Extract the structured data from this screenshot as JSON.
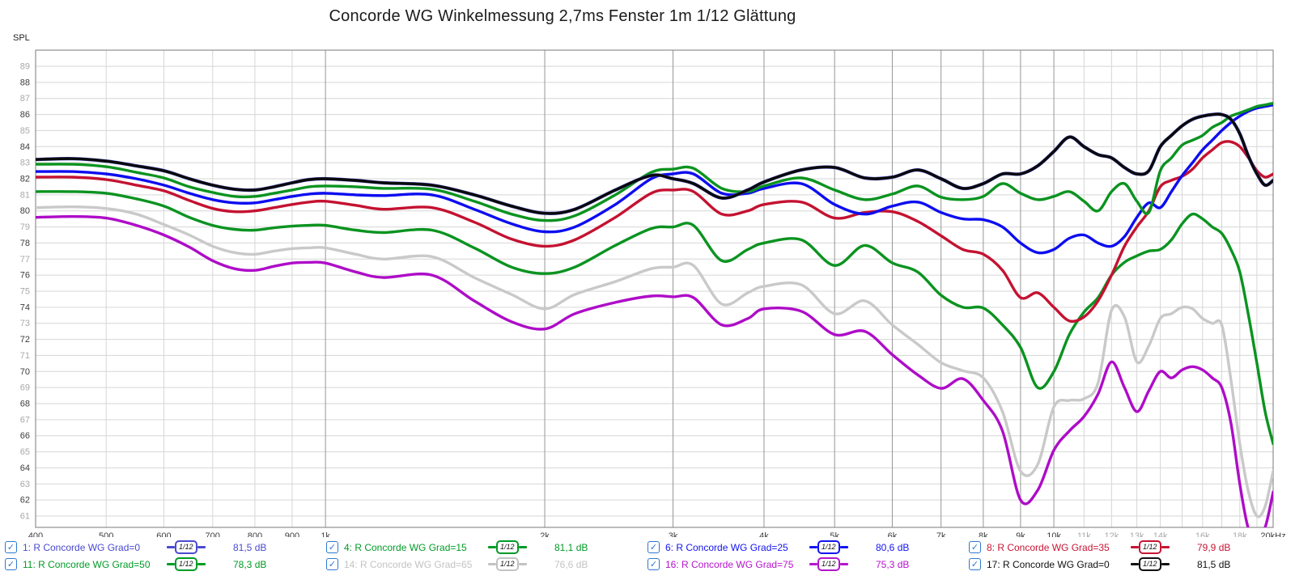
{
  "title": "Concorde WG Winkelmessung 2,7ms Fenster 1m 1/12 Glättung",
  "colors": {
    "checkbox": "#2e79cf",
    "grid_light": "#d6d6d6",
    "grid_strong": "#969696",
    "frame": "#7a7a7a",
    "tick_dark": "#3d3d3d",
    "tick_gray": "#a8a8a8"
  },
  "chart": {
    "ylabel": "SPL",
    "y_min": 60.3,
    "y_max": 90.0,
    "y_ticks": [
      61,
      62,
      63,
      64,
      65,
      66,
      67,
      68,
      69,
      70,
      71,
      72,
      73,
      74,
      75,
      76,
      77,
      78,
      79,
      80,
      81,
      82,
      83,
      84,
      85,
      86,
      87,
      88,
      89
    ],
    "x_ticks": [
      {
        "f": 400,
        "label": "400",
        "line": "frame",
        "shade": "dark"
      },
      {
        "f": 500,
        "label": "500",
        "line": "light",
        "shade": "dark"
      },
      {
        "f": 600,
        "label": "600",
        "line": "light",
        "shade": "dark"
      },
      {
        "f": 700,
        "label": "700",
        "line": "light",
        "shade": "dark"
      },
      {
        "f": 800,
        "label": "800",
        "line": "light",
        "shade": "dark"
      },
      {
        "f": 900,
        "label": "900",
        "line": "light",
        "shade": "dark"
      },
      {
        "f": 1000,
        "label": "1k",
        "line": "strong",
        "shade": "dark"
      },
      {
        "f": 2000,
        "label": "2k",
        "line": "strong",
        "shade": "dark"
      },
      {
        "f": 3000,
        "label": "3k",
        "line": "strong",
        "shade": "dark"
      },
      {
        "f": 4000,
        "label": "4k",
        "line": "strong",
        "shade": "dark"
      },
      {
        "f": 5000,
        "label": "5k",
        "line": "strong",
        "shade": "dark"
      },
      {
        "f": 6000,
        "label": "6k",
        "line": "strong",
        "shade": "dark"
      },
      {
        "f": 7000,
        "label": "7k",
        "line": "strong",
        "shade": "dark"
      },
      {
        "f": 8000,
        "label": "8k",
        "line": "strong",
        "shade": "dark"
      },
      {
        "f": 9000,
        "label": "9k",
        "line": "strong",
        "shade": "dark"
      },
      {
        "f": 10000,
        "label": "10k",
        "line": "strong",
        "shade": "dark"
      },
      {
        "f": 11000,
        "label": "11k",
        "line": "light",
        "shade": "gray"
      },
      {
        "f": 12000,
        "label": "12k",
        "line": "light",
        "shade": "gray"
      },
      {
        "f": 13000,
        "label": "13k",
        "line": "light",
        "shade": "gray"
      },
      {
        "f": 14000,
        "label": "14k",
        "line": "light",
        "shade": "gray"
      },
      {
        "f": 15000,
        "label": "",
        "line": "light",
        "shade": "gray"
      },
      {
        "f": 16000,
        "label": "16k",
        "line": "light",
        "shade": "gray"
      },
      {
        "f": 17000,
        "label": "",
        "line": "light",
        "shade": "gray"
      },
      {
        "f": 18000,
        "label": "18k",
        "line": "light",
        "shade": "gray"
      },
      {
        "f": 19000,
        "label": "",
        "line": "light",
        "shade": "gray"
      },
      {
        "f": 20000,
        "label": "20kHz",
        "line": "frame",
        "shade": "dark"
      }
    ]
  },
  "chart_data": {
    "type": "line",
    "x_unit": "Hz",
    "y_unit": "dB SPL",
    "x_range": [
      400,
      20000
    ],
    "y_range": [
      60.3,
      90.0
    ],
    "x_scale": "log",
    "x": [
      400,
      450,
      500,
      550,
      600,
      650,
      700,
      750,
      800,
      850,
      900,
      950,
      1000,
      1100,
      1200,
      1400,
      1600,
      1800,
      2000,
      2200,
      2500,
      2800,
      3000,
      3200,
      3500,
      3800,
      4000,
      4500,
      5000,
      5500,
      6000,
      6500,
      7000,
      7500,
      8000,
      8500,
      9000,
      9500,
      10000,
      10500,
      11000,
      11500,
      12000,
      12500,
      13000,
      13500,
      14000,
      14500,
      15000,
      15500,
      16000,
      16500,
      17000,
      17500,
      18000,
      18500,
      19000,
      19500,
      20000
    ],
    "series": [
      {
        "id": "s14",
        "name": "14: R Concorde WG Grad=65",
        "color": "#c9c9c9",
        "width": 3.4,
        "values": [
          80.2,
          80.25,
          80.15,
          79.8,
          79.15,
          78.5,
          77.8,
          77.4,
          77.3,
          77.5,
          77.65,
          77.7,
          77.7,
          77.3,
          77.0,
          77.15,
          75.85,
          74.8,
          73.9,
          74.8,
          75.6,
          76.4,
          76.5,
          76.6,
          74.2,
          74.9,
          75.3,
          75.4,
          73.6,
          74.4,
          72.9,
          71.7,
          70.55,
          70.05,
          69.6,
          67.5,
          63.8,
          64.2,
          67.8,
          68.2,
          68.3,
          69.3,
          73.8,
          73.4,
          70.6,
          71.6,
          73.3,
          73.6,
          74.0,
          73.9,
          73.3,
          73.0,
          72.9,
          69.5,
          65.5,
          62.5,
          61.0,
          61.6,
          63.8
        ]
      },
      {
        "id": "s16",
        "name": "16: R Concorde WG Grad=75",
        "color": "#ae0cc8",
        "width": 3.4,
        "values": [
          79.6,
          79.65,
          79.55,
          79.1,
          78.5,
          77.75,
          76.9,
          76.4,
          76.3,
          76.55,
          76.75,
          76.8,
          76.75,
          76.2,
          75.85,
          76.0,
          74.4,
          73.1,
          72.65,
          73.6,
          74.3,
          74.7,
          74.65,
          74.6,
          72.9,
          73.3,
          73.9,
          73.75,
          72.3,
          72.5,
          71.05,
          69.8,
          68.95,
          69.55,
          68.2,
          66.3,
          62.0,
          62.6,
          65.1,
          66.3,
          67.2,
          68.6,
          70.6,
          69.0,
          67.5,
          68.8,
          70.0,
          69.6,
          70.1,
          70.3,
          70.1,
          69.6,
          69.0,
          66.8,
          63.0,
          60.2,
          59.8,
          60.3,
          62.5
        ]
      },
      {
        "id": "s11",
        "name": "11: R Concorde WG Grad=50",
        "color": "#0b9320",
        "width": 3.4,
        "values": [
          81.2,
          81.2,
          81.1,
          80.75,
          80.3,
          79.6,
          79.1,
          78.85,
          78.8,
          78.95,
          79.05,
          79.1,
          79.1,
          78.8,
          78.65,
          78.8,
          77.7,
          76.5,
          76.1,
          76.5,
          77.85,
          78.9,
          79.0,
          79.1,
          76.9,
          77.6,
          78.0,
          78.2,
          76.6,
          77.85,
          76.76,
          76.2,
          74.75,
          74.0,
          73.95,
          72.9,
          71.5,
          69.0,
          70.0,
          72.3,
          73.7,
          74.6,
          76.0,
          76.8,
          77.2,
          77.5,
          77.6,
          78.2,
          79.2,
          79.8,
          79.5,
          79.0,
          78.6,
          77.6,
          76.2,
          73.5,
          70.5,
          67.5,
          65.5
        ]
      },
      {
        "id": "s8",
        "name": "8: R Concorde WG Grad=35",
        "color": "#c41231",
        "width": 3.4,
        "values": [
          82.1,
          82.1,
          81.95,
          81.6,
          81.25,
          80.65,
          80.15,
          79.95,
          80.0,
          80.2,
          80.4,
          80.55,
          80.6,
          80.35,
          80.1,
          80.2,
          79.3,
          78.25,
          77.8,
          78.2,
          79.6,
          81.1,
          81.3,
          81.2,
          79.8,
          80.0,
          80.4,
          80.55,
          79.55,
          79.9,
          79.95,
          79.35,
          78.45,
          77.6,
          77.3,
          76.3,
          74.6,
          74.9,
          74.0,
          73.15,
          73.4,
          74.4,
          76.0,
          77.8,
          79.0,
          80.0,
          81.5,
          81.9,
          82.15,
          82.6,
          83.3,
          83.8,
          84.25,
          84.3,
          84.0,
          83.3,
          82.5,
          82.1,
          82.3
        ]
      },
      {
        "id": "s6",
        "name": "6: R Concorde WG Grad=25",
        "color": "#0d0df0",
        "width": 3.4,
        "values": [
          82.45,
          82.45,
          82.3,
          82.0,
          81.6,
          81.1,
          80.7,
          80.5,
          80.5,
          80.7,
          80.9,
          81.05,
          81.1,
          81.0,
          80.95,
          81.0,
          80.1,
          79.2,
          78.7,
          79.0,
          80.4,
          82.0,
          82.3,
          82.3,
          81.1,
          81.1,
          81.4,
          81.7,
          80.4,
          79.8,
          80.3,
          80.55,
          79.9,
          79.5,
          79.45,
          79.0,
          78.0,
          77.4,
          77.6,
          78.3,
          78.5,
          78.0,
          77.8,
          78.4,
          79.6,
          80.5,
          80.2,
          81.2,
          82.2,
          83.0,
          83.8,
          84.4,
          85.0,
          85.5,
          85.9,
          86.2,
          86.4,
          86.5,
          86.6
        ]
      },
      {
        "id": "s4",
        "name": "4: R Concorde WG Grad=15",
        "color": "#0b9320",
        "width": 3.4,
        "values": [
          82.9,
          82.9,
          82.75,
          82.4,
          82.05,
          81.5,
          81.15,
          80.9,
          80.9,
          81.1,
          81.3,
          81.5,
          81.55,
          81.5,
          81.4,
          81.35,
          80.6,
          79.8,
          79.4,
          79.7,
          81.0,
          82.4,
          82.6,
          82.65,
          81.4,
          81.2,
          81.55,
          82.05,
          81.3,
          80.7,
          81.05,
          81.55,
          80.85,
          80.7,
          80.9,
          81.7,
          81.1,
          80.7,
          80.9,
          81.2,
          80.6,
          80.0,
          81.2,
          81.7,
          80.6,
          79.9,
          82.5,
          83.3,
          84.1,
          84.4,
          84.7,
          85.2,
          85.5,
          85.9,
          86.1,
          86.3,
          86.5,
          86.6,
          86.7
        ]
      },
      {
        "id": "s1",
        "name": "1: R Concorde WG Grad=0",
        "color": "#4a4ad0",
        "width": 4.2,
        "values": [
          83.2,
          83.25,
          83.1,
          82.8,
          82.5,
          82.0,
          81.6,
          81.35,
          81.3,
          81.5,
          81.75,
          81.95,
          82.0,
          81.9,
          81.75,
          81.6,
          81.0,
          80.3,
          79.85,
          80.1,
          81.3,
          82.2,
          82.0,
          81.7,
          80.8,
          81.3,
          81.8,
          82.55,
          82.7,
          82.05,
          82.1,
          82.55,
          82.0,
          81.4,
          81.7,
          82.3,
          82.3,
          82.8,
          83.7,
          84.6,
          84.0,
          83.5,
          83.3,
          82.7,
          82.3,
          82.5,
          84.0,
          84.7,
          85.3,
          85.7,
          85.9,
          86.0,
          86.0,
          85.7,
          84.8,
          83.4,
          82.3,
          81.6,
          81.9
        ]
      },
      {
        "id": "s17",
        "name": "17: R Concorde WG Grad=0",
        "color": "#0a0a0a",
        "width": 3.4,
        "values": [
          83.2,
          83.25,
          83.1,
          82.8,
          82.5,
          82.0,
          81.6,
          81.35,
          81.3,
          81.5,
          81.75,
          81.95,
          82.0,
          81.9,
          81.75,
          81.6,
          81.0,
          80.3,
          79.85,
          80.1,
          81.3,
          82.2,
          82.0,
          81.7,
          80.8,
          81.3,
          81.8,
          82.55,
          82.7,
          82.05,
          82.1,
          82.55,
          82.0,
          81.4,
          81.7,
          82.3,
          82.3,
          82.8,
          83.7,
          84.6,
          84.0,
          83.5,
          83.3,
          82.7,
          82.3,
          82.5,
          84.0,
          84.7,
          85.3,
          85.7,
          85.9,
          86.0,
          86.0,
          85.7,
          84.8,
          83.4,
          82.3,
          81.6,
          81.9
        ]
      }
    ]
  },
  "legend": {
    "smoothing": "1/12",
    "entries": [
      {
        "series_id": "s1",
        "checked": true,
        "check": "✓",
        "label": "1: R Concorde WG Grad=0",
        "value": "81,5 dB",
        "color": "#4a4ad0"
      },
      {
        "series_id": "s4",
        "checked": true,
        "check": "✓",
        "label": "4: R Concorde WG Grad=15",
        "value": "81,1 dB",
        "color": "#009b26"
      },
      {
        "series_id": "s6",
        "checked": true,
        "check": "✓",
        "label": "6: R Concorde WG Grad=25",
        "value": "80,6 dB",
        "color": "#1313f2"
      },
      {
        "series_id": "s8",
        "checked": true,
        "check": "✓",
        "label": "8: R Concorde WG Grad=35",
        "value": "79,9 dB",
        "color": "#c81433"
      },
      {
        "series_id": "s11",
        "checked": true,
        "check": "✓",
        "label": "11: R Concorde WG Grad=50",
        "value": "78,3 dB",
        "color": "#009b26"
      },
      {
        "series_id": "s14",
        "checked": true,
        "check": "✓",
        "label": "14: R Concorde WG Grad=65",
        "value": "76,6 dB",
        "color": "#c3c3c3"
      },
      {
        "series_id": "s16",
        "checked": true,
        "check": "✓",
        "label": "16: R Concorde WG Grad=75",
        "value": "75,3 dB",
        "color": "#b514cd"
      },
      {
        "series_id": "s17",
        "checked": true,
        "check": "✓",
        "label": "17: R Concorde WG Grad=0",
        "value": "81,5 dB",
        "color": "#101010"
      }
    ]
  }
}
